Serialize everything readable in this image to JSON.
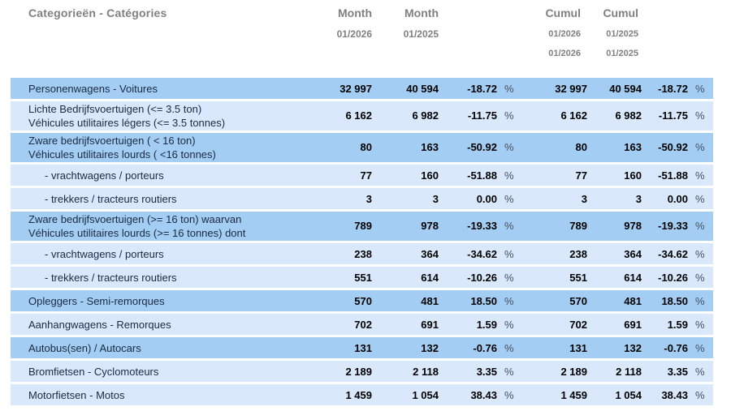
{
  "table": {
    "title": "Categorieën - Catégories",
    "columns": [
      {
        "label": "Month",
        "dates": [
          "01/2026"
        ]
      },
      {
        "label": "Month",
        "dates": [
          "01/2025"
        ]
      },
      {
        "label": "Cumul",
        "dates": [
          "01/2026",
          "01/2026"
        ]
      },
      {
        "label": "Cumul",
        "dates": [
          "01/2025",
          "01/2025"
        ]
      }
    ],
    "percent_sign": "%",
    "rows": [
      {
        "label_lines": [
          "Personenwagens - Voitures"
        ],
        "indent": false,
        "shade": "dark",
        "values": [
          "32 997",
          "40 594",
          "-18.72",
          "32 997",
          "40 594",
          "-18.72"
        ]
      },
      {
        "label_lines": [
          "Lichte Bedrijfsvoertuigen (<= 3.5 ton)",
          "Véhicules utilitaires légers (<= 3.5 tonnes)"
        ],
        "indent": false,
        "shade": "light",
        "values": [
          "6 162",
          "6 982",
          "-11.75",
          "6 162",
          "6 982",
          "-11.75"
        ]
      },
      {
        "label_lines": [
          "Zware bedrijfsvoertuigen ( < 16 ton)",
          "Véhicules utilitaires lourds ( <16 tonnes)"
        ],
        "indent": false,
        "shade": "dark",
        "values": [
          "80",
          "163",
          "-50.92",
          "80",
          "163",
          "-50.92"
        ]
      },
      {
        "label_lines": [
          "- vrachtwagens / porteurs"
        ],
        "indent": true,
        "shade": "light",
        "values": [
          "77",
          "160",
          "-51.88",
          "77",
          "160",
          "-51.88"
        ]
      },
      {
        "label_lines": [
          "- trekkers / tracteurs routiers"
        ],
        "indent": true,
        "shade": "light",
        "values": [
          "3",
          "3",
          "0.00",
          "3",
          "3",
          "0.00"
        ]
      },
      {
        "label_lines": [
          "Zware bedrijfsvoertuigen (>= 16 ton) waarvan",
          "Véhicules utilitaires lourds (>= 16 tonnes) dont"
        ],
        "indent": false,
        "shade": "dark",
        "values": [
          "789",
          "978",
          "-19.33",
          "789",
          "978",
          "-19.33"
        ]
      },
      {
        "label_lines": [
          "- vrachtwagens / porteurs"
        ],
        "indent": true,
        "shade": "light",
        "values": [
          "238",
          "364",
          "-34.62",
          "238",
          "364",
          "-34.62"
        ]
      },
      {
        "label_lines": [
          "- trekkers / tracteurs routiers"
        ],
        "indent": true,
        "shade": "light",
        "values": [
          "551",
          "614",
          "-10.26",
          "551",
          "614",
          "-10.26"
        ]
      },
      {
        "label_lines": [
          "Opleggers - Semi-remorques"
        ],
        "indent": false,
        "shade": "dark",
        "values": [
          "570",
          "481",
          "18.50",
          "570",
          "481",
          "18.50"
        ]
      },
      {
        "label_lines": [
          "Aanhangwagens - Remorques"
        ],
        "indent": false,
        "shade": "light",
        "values": [
          "702",
          "691",
          "1.59",
          "702",
          "691",
          "1.59"
        ]
      },
      {
        "label_lines": [
          "Autobus(sen) / Autocars"
        ],
        "indent": false,
        "shade": "dark",
        "values": [
          "131",
          "132",
          "-0.76",
          "131",
          "132",
          "-0.76"
        ]
      },
      {
        "label_lines": [
          "Bromfietsen - Cyclomoteurs"
        ],
        "indent": false,
        "shade": "light",
        "values": [
          "2 189",
          "2 118",
          "3.35",
          "2 189",
          "2 118",
          "3.35"
        ]
      },
      {
        "label_lines": [
          "Motorfietsen - Motos"
        ],
        "indent": false,
        "shade": "light",
        "values": [
          "1 459",
          "1 054",
          "38.43",
          "1 459",
          "1 054",
          "38.43"
        ]
      }
    ],
    "colors": {
      "dark_row": "#a3cdf3",
      "light_row": "#d9e8fb",
      "header_text": "#808080",
      "label_text": "#1b2a41",
      "number_text": "#000000"
    }
  }
}
